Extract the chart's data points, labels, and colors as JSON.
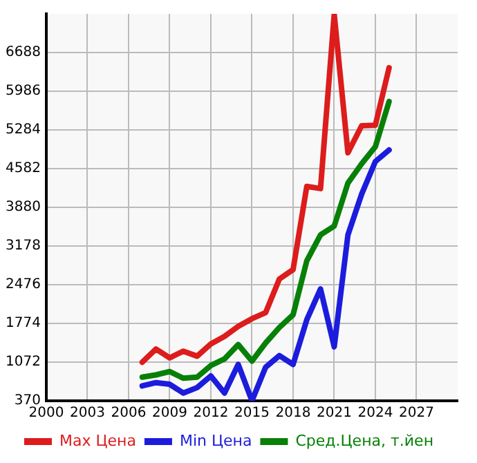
{
  "chart_data": {
    "type": "line",
    "x": [
      2007,
      2008,
      2009,
      2010,
      2011,
      2012,
      2013,
      2014,
      2015,
      2016,
      2017,
      2018,
      2019,
      2020,
      2021,
      2022,
      2023,
      2024,
      2025
    ],
    "series": [
      {
        "name": "Max Цена",
        "color": "#dd1c1c",
        "values": [
          1070,
          1310,
          1150,
          1270,
          1180,
          1400,
          1540,
          1720,
          1860,
          1970,
          2580,
          2750,
          4260,
          4220,
          7380,
          4870,
          5360,
          5370,
          6410
        ]
      },
      {
        "name": "Min Цена",
        "color": "#1c1cdd",
        "values": [
          640,
          700,
          670,
          510,
          610,
          820,
          510,
          1030,
          370,
          980,
          1190,
          1030,
          1840,
          2400,
          1350,
          3380,
          4120,
          4710,
          4920
        ]
      },
      {
        "name": "Сред.Цена, т.йен",
        "color": "#078007",
        "values": [
          800,
          840,
          900,
          780,
          800,
          1010,
          1130,
          1390,
          1090,
          1420,
          1700,
          1930,
          2910,
          3380,
          3540,
          4320,
          4670,
          4980,
          5800
        ]
      }
    ],
    "xlim": [
      2000,
      2030
    ],
    "xticks": [
      2000,
      2003,
      2006,
      2009,
      2012,
      2015,
      2018,
      2021,
      2024,
      2027
    ],
    "ylim": [
      370,
      7390
    ],
    "yticks": [
      370,
      1072,
      1774,
      2476,
      3178,
      3880,
      4582,
      5284,
      5986,
      6688
    ],
    "grid": true,
    "legend": "bottom",
    "marker": "none",
    "line_style": "solid"
  }
}
